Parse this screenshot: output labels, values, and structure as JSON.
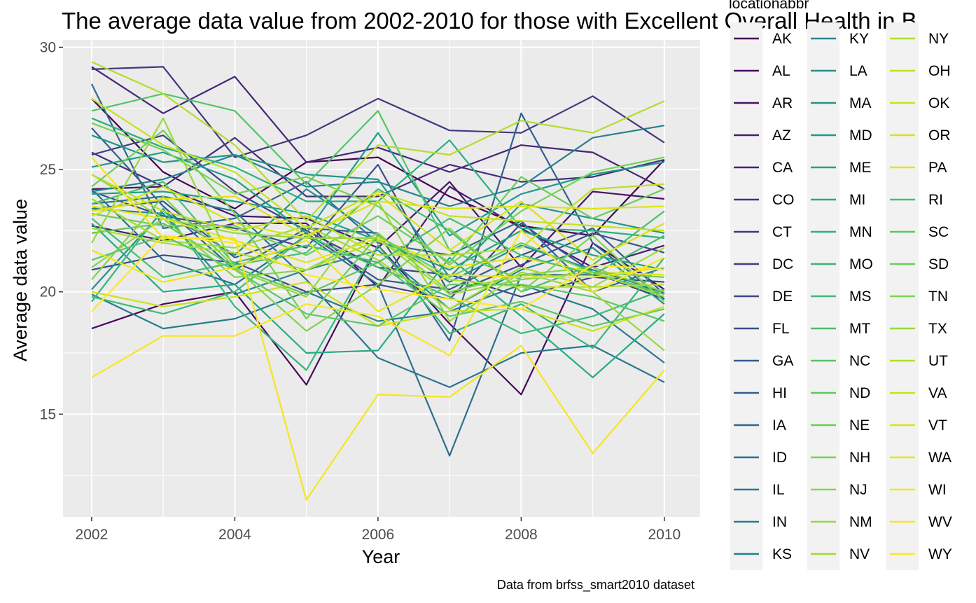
{
  "chart_data": {
    "type": "line",
    "title": "The average data value from 2002-2010 for those with Excellent Overall Health in B",
    "xlabel": "Year",
    "ylabel": "Average data value",
    "caption": "Data from brfss_smart2010 dataset",
    "legend_title": "locationabbr",
    "legend_position": "right",
    "grid": true,
    "xlim": [
      2001.6,
      2010.5
    ],
    "ylim": [
      10.8,
      30.3
    ],
    "x_ticks": [
      2002,
      2004,
      2006,
      2008,
      2010
    ],
    "x_tick_labels": [
      "2002",
      "2004",
      "2006",
      "2008",
      "2010"
    ],
    "y_ticks": [
      15,
      20,
      25,
      30
    ],
    "y_tick_labels": [
      "15",
      "20",
      "25",
      "30"
    ],
    "x": [
      2002,
      2003,
      2004,
      2005,
      2006,
      2007,
      2008,
      2009,
      2010
    ],
    "series": [
      {
        "name": "AK",
        "values": [
          27.9,
          24.9,
          23.4,
          25.3,
          25.5,
          23.9,
          22.7,
          22.3,
          25.4
        ],
        "color": "#440154"
      },
      {
        "name": "AL",
        "values": [
          18.5,
          19.5,
          20.0,
          16.2,
          21.9,
          18.7,
          15.8,
          22.0,
          20.1
        ],
        "color": "#460B5E"
      },
      {
        "name": "AR",
        "values": [
          24.2,
          24.3,
          23.1,
          23.0,
          21.8,
          24.5,
          21.0,
          24.1,
          23.8
        ],
        "color": "#481467"
      },
      {
        "name": "AZ",
        "values": [
          22.7,
          22.1,
          22.8,
          22.8,
          20.2,
          24.3,
          22.6,
          21.0,
          21.9
        ],
        "color": "#481D6F"
      },
      {
        "name": "CA",
        "values": [
          29.2,
          27.3,
          28.8,
          25.3,
          25.9,
          24.9,
          26.0,
          25.7,
          24.2
        ],
        "color": "#482576"
      },
      {
        "name": "CO",
        "values": [
          25.7,
          24.3,
          26.3,
          23.9,
          23.9,
          25.2,
          24.5,
          24.7,
          25.4
        ],
        "color": "#472D7B"
      },
      {
        "name": "CT",
        "values": [
          29.1,
          29.2,
          25.5,
          26.4,
          27.9,
          26.6,
          26.5,
          28.0,
          26.1
        ],
        "color": "#45367F"
      },
      {
        "name": "DC",
        "values": [
          25.6,
          26.4,
          24.1,
          22.5,
          21.0,
          20.7,
          19.8,
          20.6,
          20.4
        ],
        "color": "#423E84"
      },
      {
        "name": "DE",
        "values": [
          20.9,
          21.5,
          21.2,
          20.0,
          20.3,
          19.7,
          22.8,
          20.8,
          19.7
        ],
        "color": "#3F4788"
      },
      {
        "name": "FL",
        "values": [
          24.1,
          23.1,
          22.6,
          21.8,
          25.2,
          19.9,
          21.1,
          22.4,
          21.6
        ],
        "color": "#3C4F8A"
      },
      {
        "name": "GA",
        "values": [
          23.4,
          23.7,
          21.4,
          22.4,
          20.5,
          20.1,
          21.5,
          22.6,
          19.9
        ],
        "color": "#38588C"
      },
      {
        "name": "HI",
        "values": [
          26.7,
          23.5,
          20.9,
          22.6,
          22.4,
          18.0,
          27.3,
          22.0,
          19.7
        ],
        "color": "#355F8D"
      },
      {
        "name": "IA",
        "values": [
          28.5,
          22.6,
          23.0,
          24.5,
          22.0,
          21.5,
          22.9,
          20.0,
          21.0
        ],
        "color": "#31678E"
      },
      {
        "name": "ID",
        "values": [
          24.2,
          21.3,
          20.3,
          22.3,
          20.3,
          13.3,
          20.7,
          20.7,
          20.0
        ],
        "color": "#2E6E8E"
      },
      {
        "name": "IL",
        "values": [
          23.6,
          23.9,
          23.3,
          20.5,
          17.3,
          16.1,
          17.5,
          17.8,
          16.3
        ],
        "color": "#2B758E"
      },
      {
        "name": "IN",
        "values": [
          19.9,
          18.5,
          18.9,
          20.0,
          18.8,
          19.2,
          20.3,
          19.3,
          17.1
        ],
        "color": "#297B8E"
      },
      {
        "name": "KS",
        "values": [
          24.1,
          24.6,
          25.6,
          24.3,
          24.5,
          23.5,
          24.3,
          26.3,
          26.8
        ],
        "color": "#26828E"
      },
      {
        "name": "KY",
        "values": [
          23.4,
          23.2,
          19.9,
          20.9,
          21.7,
          19.3,
          20.9,
          21.8,
          19.5
        ],
        "color": "#24898E"
      },
      {
        "name": "LA",
        "values": [
          20.1,
          23.3,
          21.5,
          24.2,
          22.3,
          20.4,
          21.9,
          20.9,
          20.0
        ],
        "color": "#218F8D"
      },
      {
        "name": "MA",
        "values": [
          26.4,
          25.3,
          25.6,
          24.8,
          24.6,
          20.6,
          23.6,
          23.0,
          22.4
        ],
        "color": "#1F968B"
      },
      {
        "name": "MD",
        "values": [
          25.1,
          25.7,
          24.6,
          22.4,
          26.5,
          22.3,
          24.0,
          24.8,
          25.3
        ],
        "color": "#1F9C89"
      },
      {
        "name": "ME",
        "values": [
          24.0,
          24.1,
          23.7,
          23.2,
          22.1,
          20.9,
          22.5,
          21.5,
          20.9
        ],
        "color": "#20A386"
      },
      {
        "name": "MI",
        "values": [
          22.8,
          20.0,
          20.3,
          17.5,
          17.6,
          21.4,
          19.0,
          16.5,
          19.1
        ],
        "color": "#25AB82"
      },
      {
        "name": "MN",
        "values": [
          27.1,
          25.9,
          25.1,
          23.7,
          23.7,
          26.2,
          22.6,
          22.5,
          22.2
        ],
        "color": "#2BB07F"
      },
      {
        "name": "MO",
        "values": [
          19.6,
          23.4,
          19.4,
          16.8,
          21.9,
          18.3,
          19.5,
          17.7,
          21.4
        ],
        "color": "#33B67A"
      },
      {
        "name": "MS",
        "values": [
          19.8,
          19.1,
          20.0,
          22.3,
          21.0,
          19.8,
          18.3,
          19.0,
          20.1
        ],
        "color": "#3CBC75"
      },
      {
        "name": "MT",
        "values": [
          23.6,
          24.5,
          21.1,
          21.6,
          24.2,
          22.5,
          20.0,
          21.1,
          23.3
        ],
        "color": "#46C06F"
      },
      {
        "name": "NC",
        "values": [
          27.4,
          28.1,
          27.4,
          24.4,
          27.4,
          21.7,
          20.5,
          20.8,
          19.9
        ],
        "color": "#52C569"
      },
      {
        "name": "ND",
        "values": [
          22.4,
          22.8,
          21.0,
          19.9,
          21.2,
          19.0,
          19.6,
          18.6,
          19.3
        ],
        "color": "#5DC863"
      },
      {
        "name": "NE",
        "values": [
          23.2,
          22.7,
          22.7,
          21.5,
          23.1,
          21.2,
          24.7,
          23.0,
          24.2
        ],
        "color": "#6ACD5B"
      },
      {
        "name": "NH",
        "values": [
          26.9,
          25.8,
          24.0,
          24.7,
          23.5,
          21.1,
          23.3,
          24.9,
          25.5
        ],
        "color": "#77D153"
      },
      {
        "name": "NJ",
        "values": [
          21.0,
          23.0,
          20.6,
          20.9,
          22.4,
          20.0,
          20.7,
          21.0,
          20.0
        ],
        "color": "#86D549"
      },
      {
        "name": "NM",
        "values": [
          24.8,
          23.0,
          22.4,
          22.2,
          22.2,
          19.9,
          20.5,
          20.8,
          19.8
        ],
        "color": "#94D840"
      },
      {
        "name": "NV",
        "values": [
          23.8,
          22.1,
          21.8,
          22.7,
          21.3,
          19.3,
          21.0,
          20.2,
          21.8
        ],
        "color": "#A2DA37"
      },
      {
        "name": "NY",
        "values": [
          22.6,
          22.0,
          21.6,
          20.9,
          22.1,
          20.5,
          20.2,
          20.2,
          20.3
        ],
        "color": "#B0DD2F"
      },
      {
        "name": "OH",
        "values": [
          24.8,
          23.3,
          22.5,
          23.1,
          21.5,
          21.5,
          21.8,
          24.2,
          24.4
        ],
        "color": "#BDDF26"
      },
      {
        "name": "OK",
        "values": [
          20.0,
          19.4,
          19.8,
          20.4,
          18.6,
          19.2,
          19.3,
          18.4,
          19.4
        ],
        "color": "#CBE11E"
      },
      {
        "name": "OR",
        "values": [
          23.1,
          24.3,
          22.8,
          22.2,
          24.0,
          21.7,
          23.7,
          21.3,
          22.8
        ],
        "color": "#D8E219"
      },
      {
        "name": "PA",
        "values": [
          23.5,
          23.0,
          22.1,
          21.2,
          22.2,
          21.0,
          21.4,
          20.8,
          20.7
        ],
        "color": "#E5E419"
      },
      {
        "name": "RI",
        "values": [
          23.0,
          20.6,
          21.2,
          21.9,
          21.2,
          23.0,
          21.5,
          20.7,
          22.3
        ],
        "color": "#44BF70"
      },
      {
        "name": "SC",
        "values": [
          21.3,
          22.3,
          20.9,
          19.1,
          18.6,
          20.3,
          20.3,
          19.8,
          18.8
        ],
        "color": "#5AC865"
      },
      {
        "name": "SD",
        "values": [
          24.3,
          26.6,
          23.2,
          18.9,
          22.3,
          20.6,
          22.0,
          20.8,
          20.6
        ],
        "color": "#6ECE58"
      },
      {
        "name": "TN",
        "values": [
          20.5,
          23.9,
          21.0,
          18.4,
          20.3,
          22.6,
          20.0,
          22.3,
          19.6
        ],
        "color": "#7FD34E"
      },
      {
        "name": "TX",
        "values": [
          22.0,
          27.1,
          20.9,
          19.8,
          23.7,
          18.8,
          20.8,
          20.0,
          17.6
        ],
        "color": "#98D83E"
      },
      {
        "name": "UT",
        "values": [
          29.4,
          28.1,
          26.0,
          22.9,
          26.0,
          25.6,
          27.0,
          26.5,
          27.8
        ],
        "color": "#B2DD2D"
      },
      {
        "name": "VA",
        "values": [
          27.9,
          26.0,
          24.9,
          22.6,
          24.1,
          23.1,
          22.9,
          22.7,
          22.5
        ],
        "color": "#C8E020"
      },
      {
        "name": "VT",
        "values": [
          23.3,
          23.8,
          23.9,
          22.3,
          23.7,
          23.4,
          23.5,
          23.4,
          23.5
        ],
        "color": "#DDE318"
      },
      {
        "name": "WA",
        "values": [
          21.7,
          20.4,
          21.0,
          22.1,
          19.2,
          20.7,
          20.6,
          20.6,
          21.0
        ],
        "color": "#EAE51A"
      },
      {
        "name": "WI",
        "values": [
          25.5,
          22.2,
          22.2,
          11.5,
          15.8,
          15.7,
          17.8,
          13.4,
          16.8
        ],
        "color": "#F4E61E"
      },
      {
        "name": "WV",
        "values": [
          16.5,
          18.2,
          18.2,
          19.5,
          19.0,
          17.4,
          22.5,
          20.0,
          21.4
        ],
        "color": "#F8E620"
      },
      {
        "name": "WY",
        "values": [
          19.2,
          22.3,
          22.0,
          20.7,
          20.1,
          19.7,
          19.3,
          21.1,
          20.9
        ],
        "color": "#FDE725"
      }
    ]
  }
}
